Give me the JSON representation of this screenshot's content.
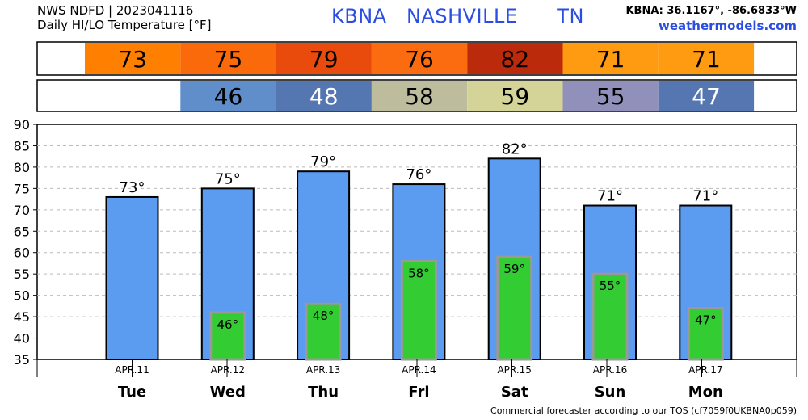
{
  "header": {
    "line1": "NWS NDFD | 2023041116",
    "line2": "Daily HI/LO Temperature [°F]",
    "station": "KBNA   NASHVILLE      TN",
    "coords": "KBNA: 36.1167°, -86.6833°W",
    "site": "weathermodels.com"
  },
  "footer": "Commercial forecaster according to our TOS (cf7059f0UKBNA0p059)",
  "colors": {
    "hi_bar": "#5b9bf0",
    "lo_bar": "#33cc33",
    "lo_bar_border": "#999999",
    "hi_cells": [
      "#ff7f00",
      "#fa6a0a",
      "#e84b0c",
      "#fb6b10",
      "#bb2a0a",
      "#ff9b10",
      "#ff9b10"
    ],
    "lo_cells": [
      "#ffffff",
      "#5f8ecb",
      "#5476b1",
      "#bdbd9e",
      "#d4d498",
      "#9090bb",
      "#5576b0"
    ]
  },
  "chart_data": {
    "type": "bar",
    "title": "Daily HI/LO Temperature [°F]",
    "categories": [
      "APR.11",
      "APR.12",
      "APR.13",
      "APR.14",
      "APR.15",
      "APR.16",
      "APR.17"
    ],
    "day_labels": [
      "Tue",
      "Wed",
      "Thu",
      "Fri",
      "Sat",
      "Sun",
      "Mon"
    ],
    "series": [
      {
        "name": "HI",
        "values": [
          73,
          75,
          79,
          76,
          82,
          71,
          71
        ],
        "labels": [
          "73°",
          "75°",
          "79°",
          "76°",
          "82°",
          "71°",
          "71°"
        ]
      },
      {
        "name": "LO",
        "values": [
          null,
          46,
          48,
          58,
          59,
          55,
          47
        ],
        "labels": [
          "",
          "46°",
          "48°",
          "58°",
          "59°",
          "55°",
          "47°"
        ]
      }
    ],
    "table": {
      "hi_row": [
        "73",
        "75",
        "79",
        "76",
        "82",
        "71",
        "71"
      ],
      "lo_row": [
        "",
        "46",
        "48",
        "58",
        "59",
        "55",
        "47"
      ]
    },
    "ylim": [
      35,
      90
    ],
    "yticks": [
      90,
      85,
      80,
      75,
      70,
      65,
      60,
      55,
      50,
      45,
      40,
      35
    ],
    "grid": true
  }
}
